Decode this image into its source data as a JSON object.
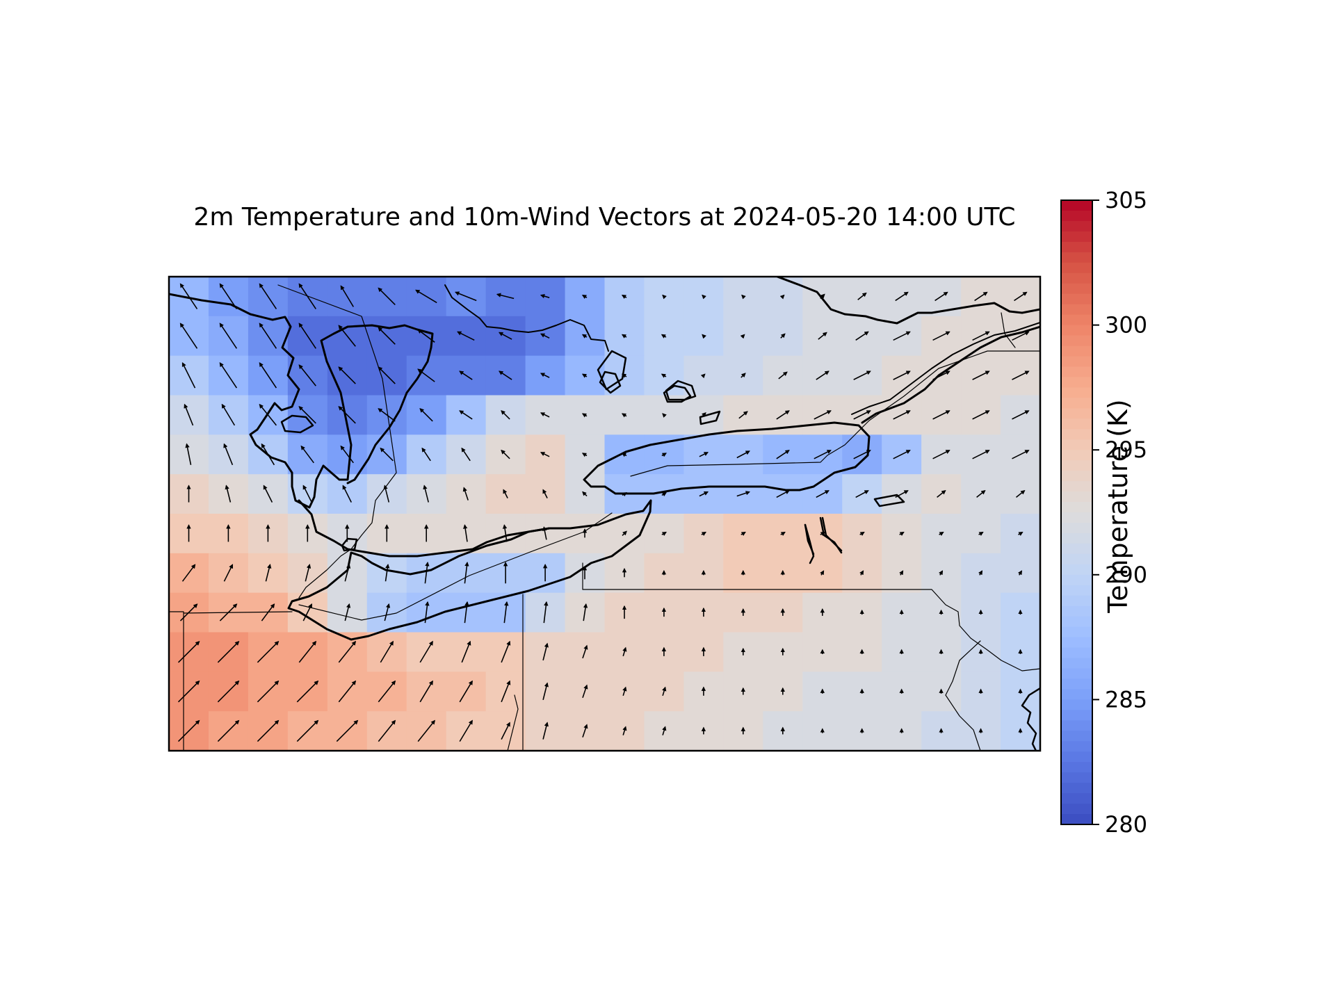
{
  "chart_data": {
    "type": "heatmap",
    "subtype": "map",
    "title": "2m Temperature and 10m-Wind Vectors at 2024-05-20 14:00 UTC",
    "overlay": "wind vectors (quiver arrows)",
    "colormap": "coolwarm",
    "colorbar": {
      "label": "Temperature (K)",
      "range": [
        280,
        305
      ],
      "ticks": [
        "280",
        "285",
        "290",
        "295",
        "300",
        "305"
      ],
      "colors": [
        "#3b4cc0",
        "#5977e3",
        "#7b9ff9",
        "#9ebeff",
        "#c0d4f5",
        "#dddcdc",
        "#f2cbb7",
        "#f7ac8e",
        "#ee8468",
        "#d65244",
        "#b40426"
      ]
    },
    "temperature_grid_K": {
      "rows_north_to_south": 12,
      "cols_west_to_east": 22,
      "values": [
        [
          287,
          285,
          284,
          283,
          283,
          283,
          283,
          284,
          283,
          283,
          286,
          289,
          290,
          290,
          291,
          291,
          292,
          292,
          292,
          292,
          293,
          293
        ],
        [
          287,
          286,
          284,
          282,
          282,
          282,
          282,
          282,
          282,
          283,
          286,
          289,
          290,
          290,
          291,
          291,
          292,
          292,
          292,
          293,
          293,
          293
        ],
        [
          289,
          287,
          285,
          283,
          282,
          282,
          283,
          283,
          283,
          285,
          287,
          289,
          290,
          291,
          291,
          292,
          292,
          292,
          293,
          293,
          293,
          293
        ],
        [
          291,
          289,
          287,
          284,
          283,
          284,
          285,
          288,
          291,
          292,
          292,
          292,
          292,
          292,
          293,
          293,
          293,
          293,
          293,
          293,
          293,
          292
        ],
        [
          292,
          291,
          289,
          286,
          285,
          286,
          289,
          291,
          293,
          294,
          292,
          287,
          287,
          288,
          288,
          287,
          287,
          286,
          288,
          292,
          292,
          292
        ],
        [
          294,
          293,
          292,
          290,
          289,
          291,
          292,
          293,
          294,
          294,
          292,
          288,
          288,
          288,
          288,
          288,
          288,
          290,
          292,
          293,
          292,
          292
        ],
        [
          295,
          295,
          294,
          293,
          292,
          293,
          293,
          293,
          293,
          293,
          293,
          293,
          293,
          294,
          295,
          295,
          295,
          294,
          293,
          292,
          292,
          291
        ],
        [
          297,
          296,
          295,
          294,
          292,
          290,
          289,
          289,
          289,
          289,
          292,
          293,
          294,
          294,
          295,
          295,
          295,
          294,
          293,
          292,
          291,
          291
        ],
        [
          298,
          297,
          297,
          295,
          292,
          289,
          288,
          288,
          288,
          291,
          293,
          294,
          294,
          294,
          294,
          294,
          293,
          293,
          292,
          292,
          291,
          290
        ],
        [
          299,
          299,
          298,
          298,
          297,
          296,
          295,
          295,
          295,
          294,
          294,
          294,
          294,
          294,
          293,
          293,
          293,
          293,
          292,
          292,
          291,
          290
        ],
        [
          299,
          299,
          298,
          298,
          297,
          297,
          296,
          296,
          295,
          294,
          294,
          294,
          294,
          293,
          293,
          293,
          292,
          292,
          292,
          292,
          291,
          290
        ],
        [
          299,
          298,
          298,
          297,
          297,
          296,
          296,
          295,
          295,
          294,
          294,
          294,
          293,
          293,
          293,
          292,
          292,
          292,
          292,
          291,
          291,
          290
        ]
      ]
    },
    "wind_field": {
      "rows_north_to_south": 12,
      "cols_west_to_east": 22,
      "u": [
        [
          -2.0,
          -2.0,
          -2.0,
          -2.0,
          -1.5,
          -2.0,
          -2.5,
          -2.5,
          -2.0,
          -1.0,
          -0.5,
          -0.5,
          -0.3,
          -0.3,
          -0.3,
          0.3,
          0.5,
          1.0,
          1.5,
          1.5,
          1.5,
          1.5
        ],
        [
          -2.0,
          -2.0,
          -2.0,
          -2.0,
          -2.0,
          -2.0,
          -2.0,
          -2.0,
          -1.5,
          -1.0,
          -0.5,
          -0.5,
          -0.5,
          -0.3,
          0.3,
          0.5,
          1.0,
          1.5,
          2.0,
          2.0,
          2.0,
          2.0
        ],
        [
          -1.5,
          -2.0,
          -2.0,
          -2.0,
          -2.0,
          -2.0,
          -2.0,
          -1.5,
          -1.5,
          -1.0,
          -0.5,
          -0.5,
          -0.5,
          0.3,
          0.5,
          1.0,
          1.5,
          2.0,
          2.0,
          2.0,
          2.0,
          2.0
        ],
        [
          -1.0,
          -1.5,
          -2.0,
          -2.0,
          -2.0,
          -2.0,
          -1.5,
          -1.5,
          -1.0,
          -1.0,
          -0.5,
          -0.5,
          -0.3,
          0.5,
          1.0,
          1.5,
          2.0,
          2.0,
          2.0,
          2.0,
          2.0,
          2.0
        ],
        [
          -0.5,
          -1.0,
          -1.5,
          -1.5,
          -1.5,
          -1.5,
          -1.0,
          -1.0,
          -1.0,
          -1.0,
          -0.5,
          -0.5,
          0.5,
          1.0,
          1.5,
          1.5,
          2.0,
          2.0,
          2.0,
          2.0,
          2.0,
          2.0
        ],
        [
          0.0,
          -0.5,
          -1.0,
          -1.0,
          -1.0,
          -0.5,
          -0.5,
          -0.5,
          -0.5,
          -0.5,
          -0.5,
          0.5,
          0.5,
          1.0,
          1.5,
          1.5,
          1.5,
          1.5,
          1.5,
          1.0,
          1.0,
          1.0
        ],
        [
          0.0,
          0.0,
          0.0,
          0.0,
          0.0,
          0.0,
          0.0,
          -0.3,
          -0.3,
          -0.3,
          0.0,
          0.5,
          0.5,
          0.5,
          0.5,
          0.5,
          0.5,
          0.5,
          0.5,
          0.5,
          0.5,
          0.5
        ],
        [
          1.5,
          1.0,
          0.5,
          0.5,
          0.5,
          0.3,
          0.3,
          0.3,
          0.0,
          0.0,
          0.0,
          0.0,
          0.0,
          0.0,
          0.0,
          0.0,
          0.3,
          0.3,
          0.3,
          0.3,
          0.3,
          0.3
        ],
        [
          2.0,
          2.0,
          1.5,
          1.0,
          0.5,
          0.5,
          0.3,
          0.3,
          0.3,
          0.3,
          0.3,
          0.0,
          0.0,
          0.0,
          0.0,
          0.0,
          0.0,
          0.0,
          0.0,
          0.0,
          0.0,
          0.0
        ],
        [
          2.5,
          2.5,
          2.5,
          2.0,
          2.0,
          1.5,
          1.5,
          1.0,
          1.0,
          0.5,
          0.5,
          0.3,
          0.0,
          0.0,
          0.0,
          0.0,
          0.0,
          0.0,
          0.0,
          0.0,
          0.0,
          0.0
        ],
        [
          2.5,
          2.5,
          2.5,
          2.5,
          2.0,
          2.0,
          1.5,
          1.5,
          1.0,
          0.5,
          0.5,
          0.3,
          0.3,
          0.0,
          0.0,
          0.0,
          0.0,
          0.0,
          0.0,
          0.0,
          0.0,
          0.0
        ],
        [
          2.5,
          2.5,
          2.5,
          2.5,
          2.5,
          2.0,
          2.0,
          1.5,
          1.0,
          0.5,
          0.5,
          0.3,
          0.3,
          0.0,
          0.0,
          0.0,
          0.0,
          0.0,
          0.0,
          0.0,
          0.0,
          0.0
        ]
      ],
      "v": [
        [
          3.0,
          3.0,
          3.0,
          3.0,
          2.5,
          2.0,
          1.5,
          1.0,
          0.5,
          0.3,
          0.3,
          0.3,
          0.3,
          0.3,
          0.3,
          0.3,
          0.5,
          0.8,
          1.0,
          1.0,
          1.0,
          1.0
        ],
        [
          3.0,
          3.0,
          3.0,
          3.0,
          2.5,
          2.0,
          1.5,
          1.0,
          0.8,
          0.5,
          0.3,
          0.3,
          0.3,
          0.3,
          0.3,
          0.5,
          0.8,
          1.0,
          1.0,
          1.0,
          1.0,
          1.0
        ],
        [
          3.0,
          3.0,
          3.0,
          2.5,
          2.0,
          2.0,
          1.5,
          1.0,
          1.0,
          0.5,
          0.3,
          0.3,
          0.3,
          0.3,
          0.5,
          0.8,
          1.0,
          1.0,
          1.0,
          1.0,
          1.0,
          1.0
        ],
        [
          2.5,
          2.5,
          2.5,
          2.0,
          2.0,
          1.5,
          1.5,
          1.0,
          1.0,
          0.5,
          0.3,
          0.3,
          0.3,
          0.5,
          0.8,
          1.0,
          1.0,
          1.0,
          1.0,
          1.0,
          1.0,
          1.0
        ],
        [
          2.5,
          2.5,
          2.5,
          2.0,
          2.0,
          1.5,
          1.5,
          1.5,
          1.0,
          0.5,
          0.3,
          0.3,
          0.3,
          0.5,
          0.8,
          1.0,
          1.0,
          1.0,
          1.0,
          1.0,
          1.0,
          1.0
        ],
        [
          2.0,
          2.0,
          2.0,
          2.0,
          2.0,
          2.0,
          2.0,
          1.5,
          1.0,
          1.0,
          0.5,
          0.3,
          0.3,
          0.5,
          0.5,
          0.8,
          0.8,
          0.8,
          0.8,
          0.8,
          0.8,
          0.8
        ],
        [
          2.0,
          2.0,
          2.0,
          2.0,
          2.0,
          2.0,
          2.0,
          2.0,
          2.0,
          1.5,
          1.0,
          0.5,
          0.3,
          0.3,
          0.3,
          0.3,
          0.3,
          0.3,
          0.3,
          0.3,
          0.3,
          0.3
        ],
        [
          2.0,
          2.0,
          2.0,
          2.0,
          2.0,
          2.0,
          2.5,
          2.5,
          2.5,
          2.0,
          1.5,
          1.0,
          0.5,
          0.5,
          0.5,
          0.5,
          0.5,
          0.5,
          0.5,
          0.5,
          0.5,
          0.5
        ],
        [
          2.0,
          2.0,
          2.0,
          2.0,
          2.0,
          2.0,
          2.5,
          2.5,
          2.5,
          2.5,
          2.0,
          1.5,
          1.0,
          1.0,
          0.8,
          0.8,
          0.8,
          0.5,
          0.5,
          0.5,
          0.5,
          0.5
        ],
        [
          2.5,
          2.5,
          2.5,
          2.5,
          2.5,
          2.5,
          2.5,
          2.5,
          2.5,
          2.0,
          1.5,
          1.0,
          1.0,
          1.0,
          0.8,
          0.8,
          0.5,
          0.5,
          0.5,
          0.5,
          0.5,
          0.5
        ],
        [
          2.5,
          2.5,
          2.5,
          2.5,
          2.5,
          2.5,
          2.5,
          2.5,
          2.5,
          2.0,
          1.5,
          1.0,
          1.0,
          1.0,
          0.8,
          0.8,
          0.5,
          0.5,
          0.5,
          0.5,
          0.5,
          0.5
        ],
        [
          2.5,
          2.5,
          2.5,
          2.5,
          2.5,
          2.5,
          2.5,
          2.5,
          2.0,
          2.0,
          1.5,
          1.0,
          1.0,
          0.8,
          0.8,
          0.8,
          0.5,
          0.5,
          0.5,
          0.5,
          0.5,
          0.5
        ]
      ]
    }
  }
}
